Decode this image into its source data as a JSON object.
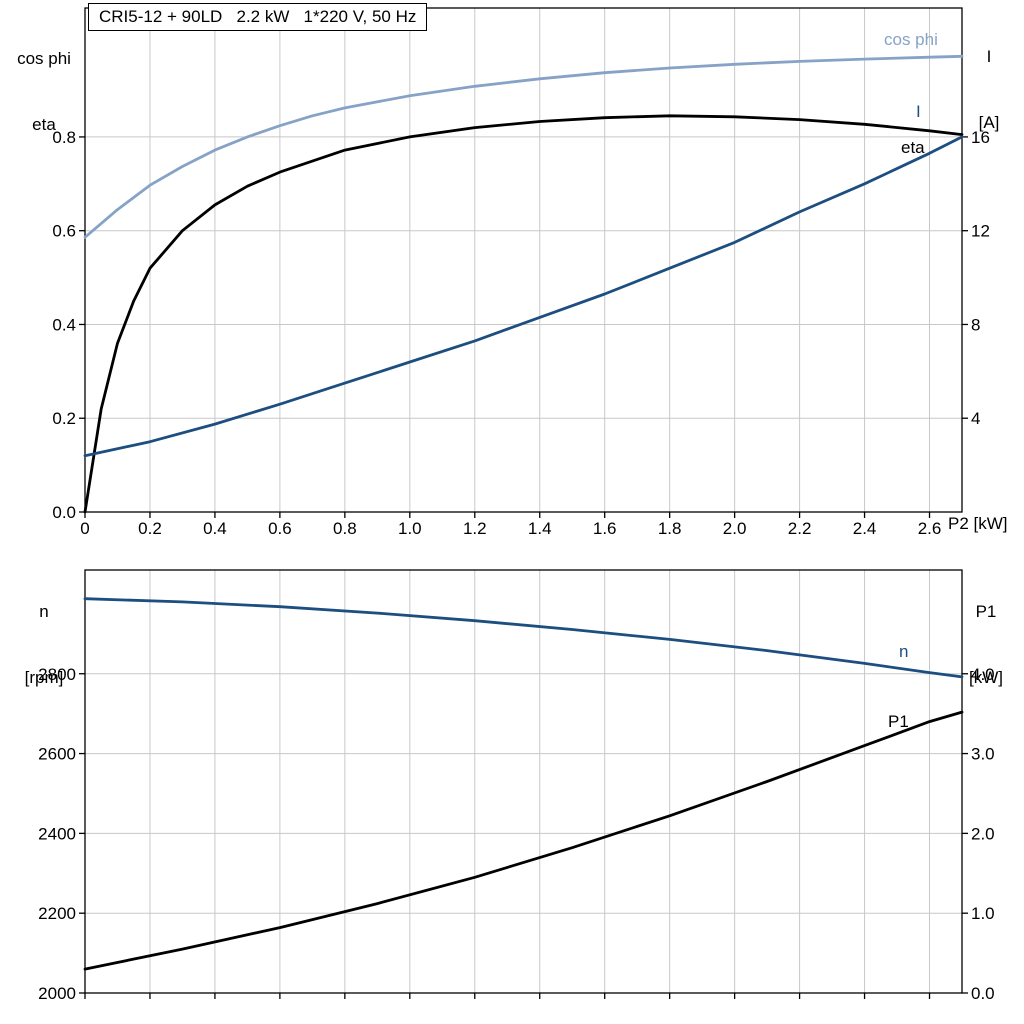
{
  "title_box": {
    "text": "CRI5-12 + 90LD   2.2 kW   1*220 V, 50 Hz"
  },
  "colors": {
    "dark_blue": "#1c4e80",
    "light_blue": "#86a3c7",
    "black": "#000000",
    "grid": "#c8c8c8",
    "axis": "#000000",
    "background": "#ffffff"
  },
  "top_chart": {
    "left_axis_title": [
      "cos phi",
      "eta"
    ],
    "right_axis_title": [
      "I",
      "[A]"
    ],
    "x_axis_title": "P2 [kW]",
    "curve_labels": {
      "cos_phi": "cos phi",
      "current": "I",
      "eta": "eta"
    }
  },
  "bottom_chart": {
    "left_axis_title": [
      "n",
      "[rpm]"
    ],
    "right_axis_title": [
      "P1",
      "[kW]"
    ],
    "curve_labels": {
      "n": "n",
      "p1": "P1"
    }
  },
  "chart_data": [
    {
      "type": "line",
      "title": "CRI5-12 + 90LD 2.2 kW 1*220 V, 50 Hz",
      "xlabel": "P2 [kW]",
      "ylabel_left": "cos phi / eta",
      "ylabel_right": "I [A]",
      "xlim": [
        0,
        2.7
      ],
      "ylim_left": [
        0,
        1.075
      ],
      "ylim_right": [
        0,
        21.5
      ],
      "grid": true,
      "legend_position": "inline-curve-labels",
      "x_ticks": [
        0,
        0.2,
        0.4,
        0.6,
        0.8,
        1.0,
        1.2,
        1.4,
        1.6,
        1.8,
        2.0,
        2.2,
        2.4,
        2.6
      ],
      "x_tick_labels": [
        "0",
        "0.2",
        "0.4",
        "0.6",
        "0.8",
        "1.0",
        "1.2",
        "1.4",
        "1.6",
        "1.8",
        "2.0",
        "2.2",
        "2.4",
        "2.6"
      ],
      "y_ticks_left": [
        0.0,
        0.2,
        0.4,
        0.6,
        0.8
      ],
      "y_tick_labels_left": [
        "0.0",
        "0.2",
        "0.4",
        "0.6",
        "0.8"
      ],
      "y_ticks_right": [
        4,
        8,
        12,
        16
      ],
      "y_tick_labels_right": [
        "4",
        "8",
        "12",
        "16"
      ],
      "series": [
        {
          "name": "cos phi",
          "axis": "left",
          "color": "light_blue",
          "x": [
            0,
            0.1,
            0.2,
            0.3,
            0.4,
            0.5,
            0.6,
            0.7,
            0.8,
            1.0,
            1.2,
            1.4,
            1.6,
            1.8,
            2.0,
            2.2,
            2.4,
            2.6,
            2.7
          ],
          "y": [
            0.586,
            0.645,
            0.697,
            0.737,
            0.772,
            0.8,
            0.824,
            0.845,
            0.862,
            0.888,
            0.908,
            0.924,
            0.937,
            0.947,
            0.955,
            0.961,
            0.966,
            0.97,
            0.972
          ]
        },
        {
          "name": "eta",
          "axis": "left",
          "color": "black",
          "x": [
            0,
            0.05,
            0.1,
            0.15,
            0.2,
            0.3,
            0.4,
            0.5,
            0.6,
            0.8,
            1.0,
            1.2,
            1.4,
            1.6,
            1.8,
            2.0,
            2.2,
            2.4,
            2.6,
            2.7
          ],
          "y": [
            0,
            0.22,
            0.36,
            0.45,
            0.52,
            0.6,
            0.655,
            0.695,
            0.725,
            0.772,
            0.8,
            0.82,
            0.833,
            0.841,
            0.845,
            0.843,
            0.837,
            0.827,
            0.813,
            0.805
          ]
        },
        {
          "name": "I",
          "axis": "right",
          "color": "dark_blue",
          "x": [
            0,
            0.2,
            0.4,
            0.6,
            0.8,
            1.0,
            1.2,
            1.4,
            1.6,
            1.8,
            2.0,
            2.2,
            2.4,
            2.6,
            2.7
          ],
          "y": [
            2.4,
            3.0,
            3.75,
            4.6,
            5.5,
            6.4,
            7.3,
            8.3,
            9.3,
            10.4,
            11.5,
            12.8,
            14.0,
            15.3,
            16.0
          ]
        }
      ]
    },
    {
      "type": "line",
      "title": "",
      "xlabel": "",
      "ylabel_left": "n [rpm]",
      "ylabel_right": "P1 [kW]",
      "xlim": [
        0,
        2.7
      ],
      "ylim_left": [
        2000,
        3060
      ],
      "ylim_right": [
        0,
        5.3
      ],
      "grid": true,
      "legend_position": "inline-curve-labels",
      "x_ticks": [
        0,
        0.2,
        0.4,
        0.6,
        0.8,
        1.0,
        1.2,
        1.4,
        1.6,
        1.8,
        2.0,
        2.2,
        2.4,
        2.6
      ],
      "x_tick_labels": [],
      "y_ticks_left": [
        2000,
        2200,
        2400,
        2600,
        2800
      ],
      "y_tick_labels_left": [
        "2000",
        "2200",
        "2400",
        "2600",
        "2800"
      ],
      "y_ticks_right": [
        0,
        1,
        2,
        3,
        4
      ],
      "y_tick_labels_right": [
        "0.0",
        "1.0",
        "2.0",
        "3.0",
        "4.0"
      ],
      "series": [
        {
          "name": "n",
          "axis": "left",
          "color": "dark_blue",
          "x": [
            0,
            0.3,
            0.6,
            0.9,
            1.2,
            1.5,
            1.8,
            2.1,
            2.4,
            2.6,
            2.7
          ],
          "y": [
            2988,
            2980,
            2968,
            2952,
            2933,
            2911,
            2886,
            2858,
            2826,
            2803,
            2792
          ]
        },
        {
          "name": "P1",
          "axis": "right",
          "color": "black",
          "x": [
            0,
            0.3,
            0.6,
            0.9,
            1.2,
            1.5,
            1.8,
            2.1,
            2.4,
            2.6,
            2.7
          ],
          "y": [
            0.3,
            0.55,
            0.82,
            1.12,
            1.45,
            1.82,
            2.22,
            2.65,
            3.1,
            3.4,
            3.52
          ]
        }
      ]
    }
  ]
}
